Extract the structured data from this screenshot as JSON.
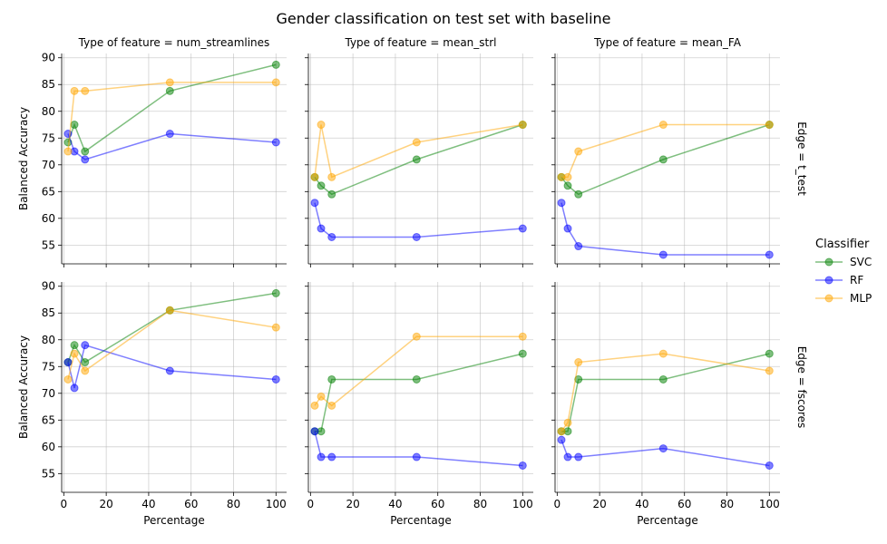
{
  "figure": {
    "title": "Gender classification on test set with baseline"
  },
  "legend": {
    "title": "Classifier",
    "position": "right"
  },
  "axes": {
    "xlabel": "Percentage",
    "ylabel": "Balanced Accuracy",
    "xticks": [
      0,
      20,
      40,
      60,
      80,
      100
    ],
    "yticks": [
      55,
      60,
      65,
      70,
      75,
      80,
      85,
      90
    ],
    "xlim": [
      -1,
      105
    ],
    "ylim": [
      51.5,
      90.8
    ],
    "grid": true
  },
  "chart_data": [
    {
      "type": "line",
      "title": "Type of feature = num_streamlines",
      "row_label": "",
      "x": [
        2,
        5,
        10,
        50,
        100
      ],
      "series": [
        {
          "name": "SVC",
          "color": "#008000",
          "values": [
            74.2,
            77.5,
            72.5,
            83.8,
            88.7
          ]
        },
        {
          "name": "RF",
          "color": "#0000ff",
          "values": [
            75.8,
            72.5,
            71.0,
            75.8,
            74.2
          ]
        },
        {
          "name": "MLP",
          "color": "#ffa500",
          "values": [
            72.5,
            83.8,
            83.8,
            85.4,
            85.4
          ]
        }
      ]
    },
    {
      "type": "line",
      "title": "Type of feature = mean_strl",
      "row_label": "",
      "x": [
        2,
        5,
        10,
        50,
        100
      ],
      "series": [
        {
          "name": "SVC",
          "color": "#008000",
          "values": [
            67.7,
            66.1,
            64.5,
            71.0,
            77.5
          ]
        },
        {
          "name": "RF",
          "color": "#0000ff",
          "values": [
            62.9,
            58.1,
            56.5,
            56.5,
            58.1
          ]
        },
        {
          "name": "MLP",
          "color": "#ffa500",
          "values": [
            67.7,
            77.5,
            67.7,
            74.2,
            77.5
          ]
        }
      ]
    },
    {
      "type": "line",
      "title": "Type of feature = mean_FA",
      "row_label": "Edge = t_test",
      "x": [
        2,
        5,
        10,
        50,
        100
      ],
      "series": [
        {
          "name": "SVC",
          "color": "#008000",
          "values": [
            67.7,
            66.1,
            64.5,
            71.0,
            77.5
          ]
        },
        {
          "name": "RF",
          "color": "#0000ff",
          "values": [
            62.9,
            58.1,
            54.8,
            53.2,
            53.2
          ]
        },
        {
          "name": "MLP",
          "color": "#ffa500",
          "values": [
            67.7,
            67.7,
            72.5,
            77.5,
            77.5
          ]
        }
      ]
    },
    {
      "type": "line",
      "title": "",
      "row_label": "",
      "x": [
        2,
        5,
        10,
        50,
        100
      ],
      "series": [
        {
          "name": "SVC",
          "color": "#008000",
          "values": [
            75.8,
            79.0,
            75.8,
            85.5,
            88.7
          ]
        },
        {
          "name": "RF",
          "color": "#0000ff",
          "values": [
            75.8,
            71.0,
            79.0,
            74.2,
            72.6
          ]
        },
        {
          "name": "MLP",
          "color": "#ffa500",
          "values": [
            72.6,
            77.4,
            74.2,
            85.5,
            82.3
          ]
        }
      ]
    },
    {
      "type": "line",
      "title": "",
      "row_label": "",
      "x": [
        2,
        5,
        10,
        50,
        100
      ],
      "series": [
        {
          "name": "SVC",
          "color": "#008000",
          "values": [
            62.9,
            62.9,
            72.6,
            72.6,
            77.4
          ]
        },
        {
          "name": "RF",
          "color": "#0000ff",
          "values": [
            62.9,
            58.1,
            58.1,
            58.1,
            56.5
          ]
        },
        {
          "name": "MLP",
          "color": "#ffa500",
          "values": [
            67.7,
            69.4,
            67.7,
            80.6,
            80.6
          ]
        }
      ]
    },
    {
      "type": "line",
      "title": "",
      "row_label": "Edge = fscores",
      "x": [
        2,
        5,
        10,
        50,
        100
      ],
      "series": [
        {
          "name": "SVC",
          "color": "#008000",
          "values": [
            62.9,
            62.9,
            72.6,
            72.6,
            77.4
          ]
        },
        {
          "name": "RF",
          "color": "#0000ff",
          "values": [
            61.3,
            58.1,
            58.1,
            59.7,
            56.5
          ]
        },
        {
          "name": "MLP",
          "color": "#ffa500",
          "values": [
            62.9,
            64.5,
            75.8,
            77.4,
            74.2
          ]
        }
      ]
    }
  ]
}
